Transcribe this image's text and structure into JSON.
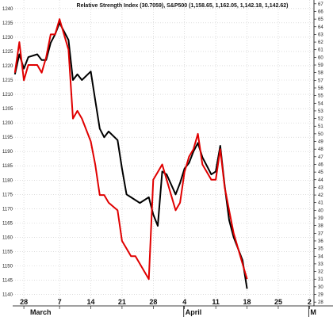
{
  "chart_data": {
    "type": "line",
    "title": "Relative Strength Index (30.7059), S&P500 (1,158.65, 1,162.05, 1,142.18, 1,142.62)",
    "x_tick_labels": [
      "28",
      "7",
      "14",
      "21",
      "28",
      "4",
      "11",
      "18",
      "25",
      "2"
    ],
    "x_tick_days": [
      0,
      8,
      15,
      22,
      29,
      36,
      43,
      50,
      57,
      64
    ],
    "month_labels": [
      "March",
      "April",
      "M"
    ],
    "month_days": [
      0,
      36,
      64
    ],
    "x_range": [
      -2.5,
      65
    ],
    "left_axis": {
      "ylim": [
        1136,
        1243
      ],
      "ticks": [
        1140,
        1145,
        1150,
        1155,
        1160,
        1165,
        1170,
        1175,
        1180,
        1185,
        1190,
        1195,
        1200,
        1205,
        1210,
        1215,
        1220,
        1225,
        1230,
        1235,
        1240
      ]
    },
    "right_axis": {
      "ylim": [
        27.5,
        67.5
      ],
      "ticks": [
        28,
        29,
        30,
        31,
        32,
        33,
        34,
        35,
        36,
        37,
        38,
        39,
        40,
        41,
        42,
        43,
        44,
        45,
        46,
        47,
        48,
        49,
        50,
        51,
        52,
        53,
        54,
        55,
        56,
        57,
        58,
        59,
        60,
        61,
        62,
        63,
        64,
        65,
        66,
        67
      ]
    },
    "series": [
      {
        "name": "S&P500",
        "color": "#000000",
        "axis": "left",
        "days": [
          -2,
          -1,
          0,
          1,
          3,
          4,
          5,
          6,
          7,
          8,
          10,
          11,
          12,
          13,
          15,
          16,
          17,
          18,
          19,
          21,
          22,
          23,
          24,
          25,
          26,
          28,
          29,
          30,
          31,
          32,
          34,
          35,
          36,
          37,
          38,
          39,
          40,
          42,
          43,
          44,
          45,
          46,
          47,
          49,
          50
        ],
        "values": [
          1217,
          1224,
          1219,
          1223,
          1224,
          1222,
          1222,
          1228,
          1231,
          1235,
          1229,
          1215,
          1217,
          1215,
          1218,
          1208,
          1198,
          1195,
          1197,
          1194,
          1184,
          1175,
          1174,
          1173,
          1172,
          1174,
          1168,
          1164,
          1183,
          1182,
          1175,
          1179,
          1184,
          1186,
          1190,
          1193,
          1188,
          1182,
          1183,
          1192,
          1178,
          1166,
          1160,
          1152,
          1142
        ]
      },
      {
        "name": "Relative Strength Index",
        "color": "#e00000",
        "axis": "right",
        "days": [
          -2,
          -1,
          0,
          1,
          3,
          4,
          5,
          6,
          7,
          8,
          10,
          11,
          12,
          13,
          15,
          16,
          17,
          18,
          19,
          21,
          22,
          23,
          24,
          25,
          26,
          28,
          29,
          30,
          31,
          32,
          34,
          35,
          36,
          37,
          38,
          39,
          40,
          42,
          43,
          44,
          45,
          46,
          47,
          49,
          50
        ],
        "values": [
          58,
          62,
          57,
          59,
          59,
          58,
          60,
          63,
          63,
          65,
          61,
          52,
          53,
          52,
          49,
          46,
          42,
          42,
          41,
          40,
          36,
          35,
          34,
          34,
          33,
          31,
          44,
          45,
          46,
          44,
          40,
          41,
          45,
          47,
          48,
          50,
          46,
          44,
          44,
          48,
          43,
          40,
          37,
          33,
          31
        ]
      }
    ],
    "grid": true,
    "legend": "none"
  }
}
